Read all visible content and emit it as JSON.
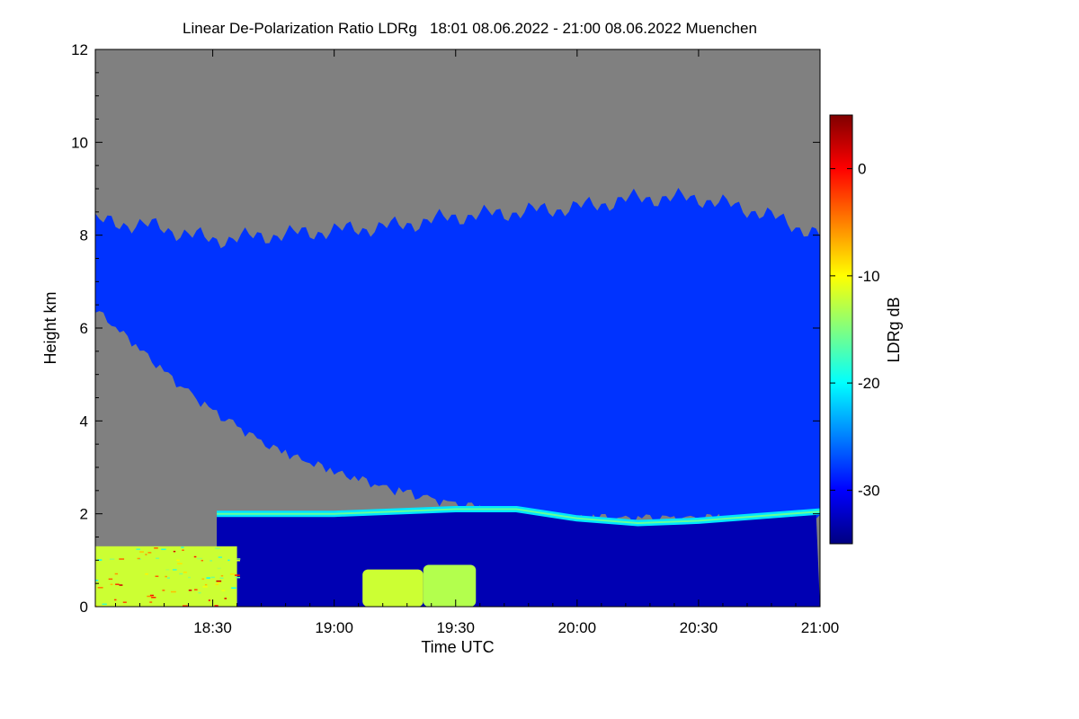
{
  "chart_data": {
    "type": "heatmap",
    "title": "Linear De-Polarization Ratio LDRg   18:01 08.06.2022 - 21:00 08.06.2022 Muenchen",
    "xlabel": "Time UTC",
    "ylabel": "Height km",
    "x_tick_labels": [
      "18:30",
      "19:00",
      "19:30",
      "20:00",
      "20:30",
      "21:00"
    ],
    "x_tick_minutes": [
      30,
      60,
      90,
      120,
      150,
      180
    ],
    "xlim_minutes": [
      1,
      180
    ],
    "y_ticks": [
      0,
      2,
      4,
      6,
      8,
      10,
      12
    ],
    "ylim": [
      0,
      12
    ],
    "colorbar": {
      "label": "LDRg dB",
      "range": [
        -35,
        5
      ],
      "ticks": [
        0,
        -10,
        -20,
        -30
      ],
      "tick_labels": [
        "0",
        "-10",
        "-20",
        "-30"
      ],
      "colormap": [
        "#000080",
        "#0000ff",
        "#0080ff",
        "#00ffff",
        "#80ff80",
        "#ffff00",
        "#ff8000",
        "#ff0000",
        "#800000"
      ]
    },
    "no_data_color": "#808080",
    "features": {
      "cloud_top_km": [
        [
          1,
          8.3
        ],
        [
          15,
          8.2
        ],
        [
          30,
          7.9
        ],
        [
          45,
          8.0
        ],
        [
          60,
          8.1
        ],
        [
          75,
          8.2
        ],
        [
          90,
          8.4
        ],
        [
          105,
          8.5
        ],
        [
          120,
          8.6
        ],
        [
          135,
          8.8
        ],
        [
          150,
          8.8
        ],
        [
          165,
          8.5
        ],
        [
          180,
          8.0
        ]
      ],
      "cloud_base_km": [
        [
          1,
          6.5
        ],
        [
          10,
          5.8
        ],
        [
          20,
          5.0
        ],
        [
          30,
          4.3
        ],
        [
          45,
          3.5
        ],
        [
          60,
          3.0
        ],
        [
          75,
          2.6
        ],
        [
          90,
          2.3
        ],
        [
          105,
          2.1
        ],
        [
          120,
          2.0
        ],
        [
          150,
          2.0
        ],
        [
          180,
          2.0
        ]
      ],
      "bright_band_km": [
        [
          31,
          2.0
        ],
        [
          60,
          2.0
        ],
        [
          90,
          2.1
        ],
        [
          105,
          2.1
        ],
        [
          120,
          1.9
        ],
        [
          135,
          1.8
        ],
        [
          150,
          1.85
        ],
        [
          165,
          1.95
        ],
        [
          180,
          2.05
        ]
      ],
      "bright_band_ldr_db": -21,
      "cloud_ldr_db": -28,
      "rain_ldr_db": -33,
      "low_level_aerosol": {
        "from_minute": 1,
        "to_minute": 36,
        "top_km": 1.3,
        "ldr_db": -12
      },
      "aerosol_plumes": [
        {
          "from_minute": 67,
          "to_minute": 82,
          "top_km": 0.8,
          "ldr_db": -12
        },
        {
          "from_minute": 82,
          "to_minute": 95,
          "top_km": 0.9,
          "ldr_db": -13
        }
      ]
    }
  }
}
